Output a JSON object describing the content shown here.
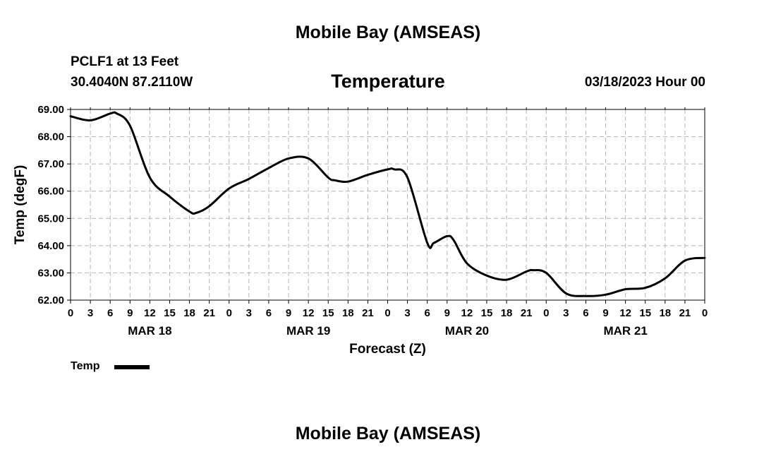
{
  "header": {
    "title": "Mobile Bay (AMSEAS)",
    "station": "PCLF1 at 13 Feet",
    "coordinates": "30.4040N  87.2110W",
    "parameter": "Temperature",
    "datetime": "03/18/2023 Hour 00"
  },
  "footer": {
    "title": "Mobile Bay (AMSEAS)"
  },
  "legend": {
    "label": "Temp",
    "color": "#000000"
  },
  "chart_data": {
    "type": "line",
    "title": "Temperature",
    "xlabel": "Forecast (Z)",
    "ylabel": "Temp (degF)",
    "ylim": [
      62.0,
      69.0
    ],
    "xlim_hours": [
      0,
      96
    ],
    "grid": true,
    "legend_position": "bottom-left",
    "y_ticks": [
      "62.00",
      "63.00",
      "64.00",
      "65.00",
      "66.00",
      "67.00",
      "68.00",
      "69.00"
    ],
    "x_tick_labels": [
      "0",
      "3",
      "6",
      "9",
      "12",
      "15",
      "18",
      "21",
      "0",
      "3",
      "6",
      "9",
      "12",
      "15",
      "18",
      "21",
      "0",
      "3",
      "6",
      "9",
      "12",
      "15",
      "18",
      "21",
      "0",
      "3",
      "6",
      "9",
      "12",
      "15",
      "18",
      "21",
      "0"
    ],
    "date_labels": [
      {
        "label": "MAR 18",
        "hour": 12
      },
      {
        "label": "MAR 19",
        "hour": 36
      },
      {
        "label": "MAR 20",
        "hour": 60
      },
      {
        "label": "MAR 21",
        "hour": 84
      }
    ],
    "series": [
      {
        "name": "Temp",
        "color": "#000000",
        "x": [
          0,
          3,
          6,
          7,
          9,
          12,
          15,
          18,
          19,
          21,
          24,
          27,
          30,
          33,
          36,
          39,
          40,
          42,
          45,
          48,
          49,
          51,
          54,
          55,
          57,
          58,
          60,
          63,
          66,
          69,
          70,
          72,
          75,
          78,
          81,
          84,
          87,
          90,
          93,
          96
        ],
        "y": [
          68.75,
          68.6,
          68.85,
          68.85,
          68.4,
          66.5,
          65.8,
          65.25,
          65.2,
          65.45,
          66.1,
          66.45,
          66.85,
          67.2,
          67.2,
          66.5,
          66.4,
          66.35,
          66.6,
          66.8,
          66.8,
          66.5,
          64.1,
          64.1,
          64.35,
          64.2,
          63.35,
          62.9,
          62.75,
          63.05,
          63.1,
          63.0,
          62.25,
          62.15,
          62.2,
          62.4,
          62.45,
          62.8,
          63.45,
          63.55
        ]
      }
    ]
  }
}
